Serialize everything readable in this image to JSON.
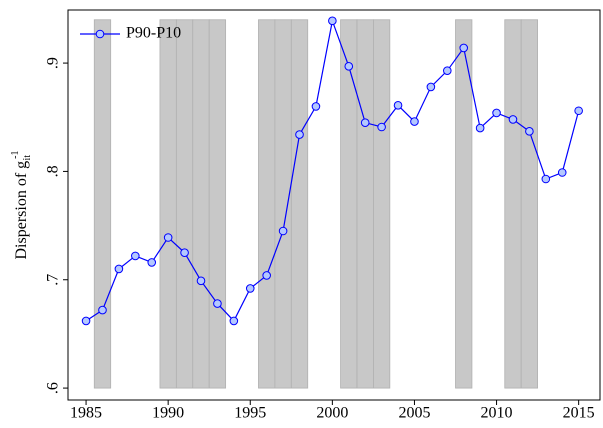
{
  "chart_data": {
    "type": "line",
    "ylabel": "Dispersion of g",
    "ylabel_sup": "-1",
    "ylabel_sub": "it",
    "x": [
      1985,
      1986,
      1987,
      1988,
      1989,
      1990,
      1991,
      1992,
      1993,
      1994,
      1995,
      1996,
      1997,
      1998,
      1999,
      2000,
      2001,
      2002,
      2003,
      2004,
      2005,
      2006,
      2007,
      2008,
      2009,
      2010,
      2011,
      2012,
      2013,
      2014,
      2015
    ],
    "series": [
      {
        "name": "P90-P10",
        "color": "#0000ff",
        "marker_fill": "#b4c8ff",
        "values": [
          0.662,
          0.672,
          0.71,
          0.722,
          0.716,
          0.739,
          0.725,
          0.699,
          0.678,
          0.662,
          0.692,
          0.704,
          0.745,
          0.834,
          0.86,
          0.939,
          0.897,
          0.845,
          0.841,
          0.861,
          0.846,
          0.878,
          0.893,
          0.914,
          0.84,
          0.854,
          0.848,
          0.837,
          0.793,
          0.799,
          0.856
        ]
      }
    ],
    "shaded": {
      "color": "#c8c8c8",
      "x": [
        1986,
        1990,
        1991,
        1992,
        1993,
        1996,
        1997,
        1998,
        2001,
        2002,
        2003,
        2008,
        2011,
        2012
      ],
      "range": [
        0.6,
        0.94
      ]
    },
    "xlim": [
      1983.9,
      2016.3
    ],
    "ylim": [
      0.589,
      0.949
    ],
    "xticks": [
      1985,
      1990,
      1995,
      2000,
      2005,
      2010,
      2015
    ],
    "yticks": [
      {
        "value": 0.6,
        "label": ".6"
      },
      {
        "value": 0.7,
        "label": ".7"
      },
      {
        "value": 0.8,
        "label": ".8"
      },
      {
        "value": 0.9,
        "label": ".9"
      }
    ],
    "legend": "top-left"
  }
}
